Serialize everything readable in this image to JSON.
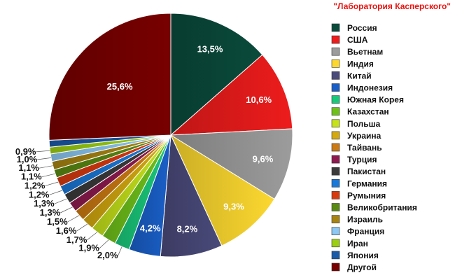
{
  "source_label": "\"Лаборатория Касперского\"",
  "chart_data": {
    "type": "pie",
    "start_direction": "12 o'clock, clockwise",
    "legend_position": "right",
    "slices": [
      {
        "label": "Россия",
        "value": 13.5,
        "display": "13,5%",
        "color": "#0a4b3c"
      },
      {
        "label": "США",
        "value": 10.6,
        "display": "10,6%",
        "color": "#ee1c1c"
      },
      {
        "label": "Вьетнам",
        "value": 9.6,
        "display": "9,6%",
        "color": "#9c9c9c"
      },
      {
        "label": "Индия",
        "value": 9.3,
        "display": "9,3%",
        "color": "#fcd82f"
      },
      {
        "label": "Китай",
        "value": 8.2,
        "display": "8,2%",
        "color": "#4a4a7b"
      },
      {
        "label": "Индонезия",
        "value": 4.2,
        "display": "4,2%",
        "color": "#1a5fc8"
      },
      {
        "label": "Южная Корея",
        "value": 2.0,
        "display": "2,0%",
        "color": "#1ac87a"
      },
      {
        "label": "Казахстан",
        "value": 1.9,
        "display": "1,9%",
        "color": "#6fc11a"
      },
      {
        "label": "Польша",
        "value": 1.7,
        "display": "1,7%",
        "color": "#c5e21a"
      },
      {
        "label": "Украина",
        "value": 1.6,
        "display": "1,6%",
        "color": "#d4a90f"
      },
      {
        "label": "Тайвань",
        "value": 1.5,
        "display": "1,5%",
        "color": "#cc7a12"
      },
      {
        "label": "Турция",
        "value": 1.3,
        "display": "1,3%",
        "color": "#8f1a4f"
      },
      {
        "label": "Пакистан",
        "value": 1.3,
        "display": "1,3%",
        "color": "#3b3b3b"
      },
      {
        "label": "Германия",
        "value": 1.2,
        "display": "1,2%",
        "color": "#1a78d8"
      },
      {
        "label": "Румыния",
        "value": 1.2,
        "display": "1,2%",
        "color": "#d83a0f"
      },
      {
        "label": "Великобритания",
        "value": 1.1,
        "display": "1,1%",
        "color": "#5a8a12"
      },
      {
        "label": "Израиль",
        "value": 1.1,
        "display": "1,1%",
        "color": "#a88412"
      },
      {
        "label": "Франция",
        "value": 1.0,
        "display": "1,0%",
        "color": "#8cc8f2"
      },
      {
        "label": "Иран",
        "value": 0.9,
        "display": "0,9%",
        "color": "#9ccf12"
      },
      {
        "label": "Япония",
        "value": 0.9,
        "display": "",
        "color": "#1a5aa8"
      },
      {
        "label": "Другой",
        "value": 25.6,
        "display": "25,6%",
        "color": "#780000"
      }
    ]
  }
}
